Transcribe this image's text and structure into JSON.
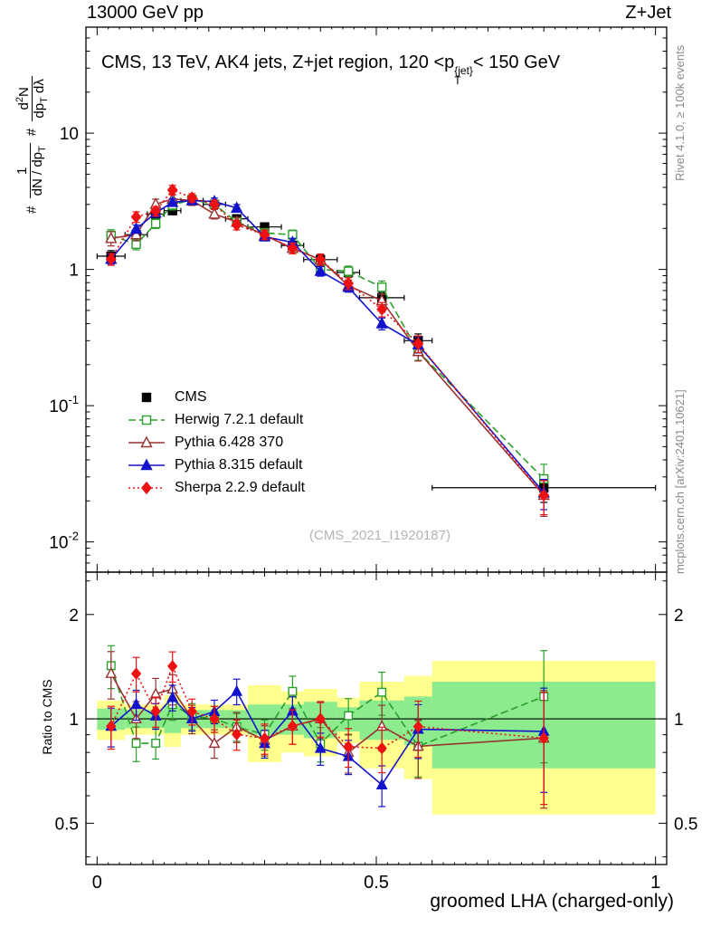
{
  "header": {
    "left": "13000 GeV pp",
    "right": "Z+Jet"
  },
  "main": {
    "title_pre": "CMS, 13 TeV, AK4 jets, Z+jet region, 120 <p",
    "title_sup": "{jet}",
    "title_sub": "T",
    "title_post": "< 150 GeV",
    "watermark": "(CMS_2021_I1920187)"
  },
  "side": {
    "top": "Rivet 4.1.0, ≥ 100k events",
    "bottom": "mcplots.cern.ch [arXiv:2401.10621]"
  },
  "ylabel_main": {
    "hash1": "#",
    "f1num": "1",
    "f1den_pre": "dN / dp",
    "f1den_sub": "T",
    "hash2": "#",
    "f2num_pre": "d",
    "f2num_sup": "2",
    "f2num_post": "N",
    "f2den_pre": "dp",
    "f2den_sub": "T",
    "f2den_post": " dλ"
  },
  "ratio_panel": {
    "ylabel": "Ratio to CMS"
  },
  "xaxis": {
    "title": "groomed LHA (charged-only)"
  },
  "chart_data": {
    "type": "line",
    "title": "CMS, 13 TeV, AK4 jets, Z+jet region, 120 <pT{jet}< 150 GeV",
    "xlabel": "groomed LHA (charged-only)",
    "ylabel": "# 1/(dN/dpT) # d2N/(dpT dлambda)",
    "yscale_main": "log",
    "yscale_ratio": "log",
    "xlim": [
      -0.02,
      1.02
    ],
    "ylim_main": [
      0.006,
      60
    ],
    "ylim_ratio": [
      0.38,
      2.65
    ],
    "xticks": [
      {
        "v": 0,
        "label": "0"
      },
      {
        "v": 0.5,
        "label": "0.5"
      },
      {
        "v": 1,
        "label": "1"
      }
    ],
    "yticks_main": [
      {
        "v": 10,
        "base": "10",
        "exp": ""
      },
      {
        "v": 1,
        "base": "1",
        "exp": ""
      },
      {
        "v": 0.1,
        "base": "10",
        "exp": "-1"
      },
      {
        "v": 0.01,
        "base": "10",
        "exp": "-2"
      }
    ],
    "yticks_ratio": [
      {
        "v": 0.5,
        "label": "0.5"
      },
      {
        "v": 1,
        "label": "1"
      },
      {
        "v": 2,
        "label": "2"
      }
    ],
    "x": [
      0.025,
      0.07,
      0.105,
      0.135,
      0.17,
      0.21,
      0.25,
      0.3,
      0.35,
      0.4,
      0.45,
      0.51,
      0.575,
      0.8
    ],
    "bin_edges": [
      0.0,
      0.05,
      0.09,
      0.12,
      0.15,
      0.19,
      0.23,
      0.27,
      0.33,
      0.37,
      0.43,
      0.47,
      0.55,
      0.6,
      1.0
    ],
    "series": [
      {
        "name": "CMS",
        "color": "#000000",
        "marker": "square",
        "fill": true,
        "line": "none",
        "values": [
          1.25,
          1.8,
          2.55,
          2.7,
          3.2,
          3.0,
          2.35,
          2.05,
          1.5,
          1.18,
          0.95,
          0.62,
          0.3,
          0.025
        ],
        "err_frac": [
          0.1,
          0.07,
          0.06,
          0.06,
          0.05,
          0.05,
          0.06,
          0.06,
          0.07,
          0.07,
          0.08,
          0.09,
          0.12,
          0.22
        ]
      },
      {
        "name": "Herwig 7.2.1 default",
        "color": "#2b9f2b",
        "marker": "square",
        "fill": false,
        "line": "dashed",
        "values": [
          1.78,
          1.53,
          2.17,
          2.97,
          3.26,
          3.0,
          2.23,
          1.85,
          1.8,
          1.0,
          0.97,
          0.74,
          0.25,
          0.029
        ],
        "err_frac": [
          0.1,
          0.09,
          0.08,
          0.08,
          0.07,
          0.07,
          0.07,
          0.08,
          0.08,
          0.09,
          0.09,
          0.11,
          0.14,
          0.28
        ]
      },
      {
        "name": "Pythia 6.428 370",
        "color": "#993333",
        "marker": "triangle",
        "fill": false,
        "line": "solid",
        "values": [
          1.69,
          1.8,
          3.01,
          3.29,
          3.2,
          2.55,
          2.23,
          1.78,
          1.43,
          1.18,
          0.76,
          0.59,
          0.25,
          0.022
        ],
        "err_frac": [
          0.12,
          0.1,
          0.09,
          0.08,
          0.08,
          0.08,
          0.08,
          0.08,
          0.09,
          0.1,
          0.1,
          0.12,
          0.15,
          0.3
        ]
      },
      {
        "name": "Pythia 8.315 default",
        "color": "#1212cc",
        "marker": "triangle",
        "fill": true,
        "line": "solid",
        "values": [
          1.19,
          1.98,
          2.6,
          3.11,
          3.2,
          3.15,
          2.82,
          1.74,
          1.58,
          0.97,
          0.74,
          0.4,
          0.28,
          0.023
        ],
        "err_frac": [
          0.08,
          0.07,
          0.06,
          0.06,
          0.06,
          0.06,
          0.06,
          0.07,
          0.07,
          0.08,
          0.08,
          0.1,
          0.13,
          0.25
        ]
      },
      {
        "name": "Sherpa 2.2.9 default",
        "color": "#ee1111",
        "marker": "diamond",
        "fill": true,
        "line": "dotted",
        "values": [
          1.19,
          2.43,
          2.68,
          3.83,
          3.36,
          3.0,
          2.12,
          1.8,
          1.43,
          1.18,
          0.79,
          0.51,
          0.285,
          0.022
        ],
        "err_frac": [
          0.1,
          0.09,
          0.08,
          0.08,
          0.07,
          0.07,
          0.08,
          0.08,
          0.09,
          0.09,
          0.1,
          0.12,
          0.14,
          0.28
        ]
      }
    ],
    "ratio": {
      "reference": "CMS",
      "band_colors": {
        "yellow": "#ffff8d",
        "green": "#8ceb8c"
      },
      "yellow_halfwidth": [
        0.13,
        0.1,
        0.1,
        0.17,
        0.1,
        0.1,
        0.1,
        0.25,
        0.2,
        0.22,
        0.15,
        0.28,
        0.33,
        0.47
      ],
      "green_halfwidth": [
        0.07,
        0.06,
        0.06,
        0.09,
        0.06,
        0.06,
        0.06,
        0.1,
        0.1,
        0.12,
        0.08,
        0.13,
        0.16,
        0.28
      ]
    },
    "legend_position": "middle-left",
    "grid": false
  }
}
